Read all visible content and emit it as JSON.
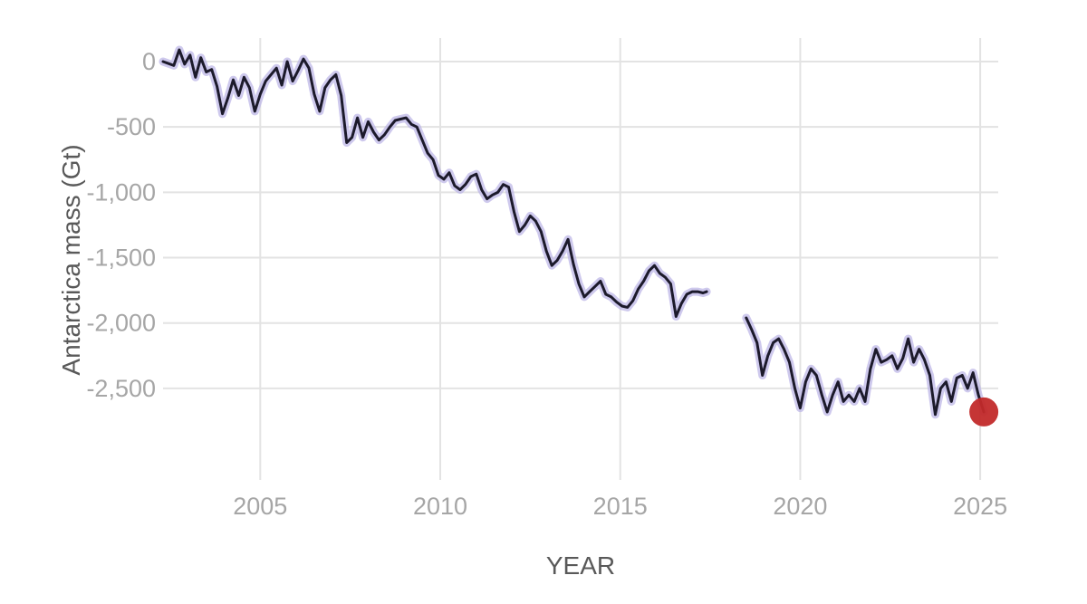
{
  "chart_data": {
    "type": "line",
    "title": "",
    "xlabel": "YEAR",
    "ylabel": "Antarctica mass (Gt)",
    "xlim": [
      2002.3,
      2025.5
    ],
    "ylim": [
      -3200,
      180
    ],
    "x_ticks": [
      2005,
      2010,
      2015,
      2020,
      2025
    ],
    "x_tick_labels": [
      "2005",
      "2010",
      "2015",
      "2020",
      "2025"
    ],
    "y_ticks": [
      0,
      -500,
      -1000,
      -1500,
      -2000,
      -2500
    ],
    "y_tick_labels": [
      "0",
      "-500",
      "-1,000",
      "-1,500",
      "-2,000",
      "-2,500"
    ],
    "grid": true,
    "line_color": "#1c1a2b",
    "uncertainty_color": "#b9b2e6",
    "highlight_color": "#c22a2a",
    "series": [
      {
        "x": [
          2002.3,
          2002.6,
          2002.75,
          2002.9,
          2003.05,
          2003.2,
          2003.35,
          2003.5,
          2003.65,
          2003.8,
          2003.95,
          2004.1,
          2004.25,
          2004.4,
          2004.55,
          2004.7,
          2004.85,
          2005.0,
          2005.15,
          2005.3,
          2005.45,
          2005.6,
          2005.75,
          2005.9,
          2006.05,
          2006.2,
          2006.35,
          2006.5,
          2006.65,
          2006.8,
          2006.95,
          2007.1,
          2007.25,
          2007.4,
          2007.55,
          2007.7,
          2007.85,
          2008.0,
          2008.15,
          2008.3,
          2008.45,
          2008.6,
          2008.75,
          2008.9,
          2009.05,
          2009.2,
          2009.35,
          2009.5,
          2009.65,
          2009.8,
          2009.95,
          2010.1,
          2010.25,
          2010.4,
          2010.55,
          2010.7,
          2010.85,
          2011.0,
          2011.15,
          2011.3,
          2011.45,
          2011.6,
          2011.75,
          2011.9,
          2012.05,
          2012.2,
          2012.35,
          2012.5,
          2012.65,
          2012.8,
          2012.95,
          2013.1,
          2013.25,
          2013.4,
          2013.55,
          2013.7,
          2013.85,
          2014.0,
          2014.15,
          2014.3,
          2014.45,
          2014.6,
          2014.75,
          2014.9,
          2015.05,
          2015.2,
          2015.35,
          2015.5,
          2015.65,
          2015.8,
          2015.95,
          2016.1,
          2016.25,
          2016.4,
          2016.55,
          2016.7,
          2016.85,
          2017.0,
          2017.15,
          2017.3,
          2017.4
        ],
        "y": [
          0,
          -30,
          90,
          -20,
          50,
          -120,
          30,
          -80,
          -60,
          -190,
          -400,
          -280,
          -140,
          -260,
          -120,
          -200,
          -380,
          -250,
          -150,
          -100,
          -50,
          -180,
          0,
          -150,
          -70,
          20,
          -50,
          -250,
          -380,
          -200,
          -140,
          -100,
          -260,
          -620,
          -580,
          -430,
          -580,
          -460,
          -540,
          -600,
          -560,
          -500,
          -450,
          -440,
          -430,
          -480,
          -500,
          -600,
          -700,
          -750,
          -870,
          -900,
          -850,
          -950,
          -980,
          -940,
          -880,
          -860,
          -980,
          -1050,
          -1020,
          -1000,
          -940,
          -960,
          -1150,
          -1300,
          -1250,
          -1180,
          -1220,
          -1300,
          -1450,
          -1560,
          -1520,
          -1450,
          -1360,
          -1550,
          -1700,
          -1800,
          -1760,
          -1720,
          -1680,
          -1780,
          -1800,
          -1840,
          -1870,
          -1880,
          -1830,
          -1740,
          -1680,
          -1600,
          -1560,
          -1620,
          -1650,
          -1700,
          -1950,
          -1850,
          -1780,
          -1760,
          -1760,
          -1770,
          -1760
        ]
      },
      {
        "x": [
          2018.5,
          2018.65,
          2018.8,
          2018.95,
          2019.1,
          2019.25,
          2019.4,
          2019.55,
          2019.7,
          2019.85,
          2020.0,
          2020.15,
          2020.3,
          2020.45,
          2020.6,
          2020.75,
          2020.9,
          2021.05,
          2021.2,
          2021.35,
          2021.5,
          2021.65,
          2021.8,
          2021.95,
          2022.1,
          2022.25,
          2022.4,
          2022.55,
          2022.7,
          2022.85,
          2023.0,
          2023.15,
          2023.3,
          2023.45,
          2023.6,
          2023.75,
          2023.9,
          2024.05,
          2024.2,
          2024.35,
          2024.5,
          2024.65,
          2024.8,
          2024.95,
          2025.1
        ],
        "y": [
          -1960,
          -2050,
          -2150,
          -2400,
          -2250,
          -2150,
          -2120,
          -2200,
          -2300,
          -2500,
          -2650,
          -2450,
          -2350,
          -2400,
          -2550,
          -2680,
          -2550,
          -2450,
          -2600,
          -2550,
          -2600,
          -2500,
          -2600,
          -2350,
          -2200,
          -2300,
          -2280,
          -2250,
          -2350,
          -2270,
          -2120,
          -2300,
          -2200,
          -2280,
          -2400,
          -2700,
          -2500,
          -2450,
          -2600,
          -2420,
          -2400,
          -2500,
          -2380,
          -2550,
          -2680
        ]
      }
    ],
    "highlight_point": {
      "x": 2025.1,
      "y": -2680
    }
  }
}
